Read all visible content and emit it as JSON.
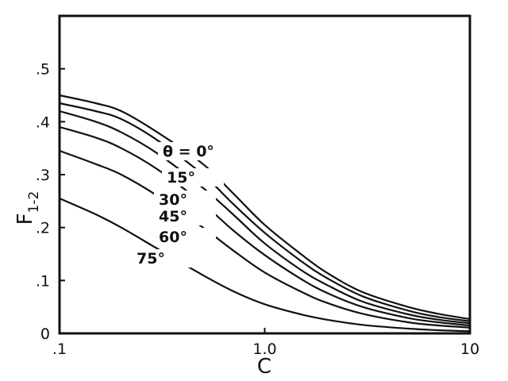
{
  "chart_data": {
    "type": "line",
    "x_scale": "log",
    "xlim": [
      0.1,
      10
    ],
    "ylim": [
      0,
      0.6
    ],
    "xlabel": "C",
    "ylabel": "F1-2",
    "ylabel_main": "F",
    "ylabel_sub": "1-2",
    "grid": false,
    "x_ticks": [
      {
        "value": 0.1,
        "label": ".1"
      },
      {
        "value": 1.0,
        "label": "1.0"
      },
      {
        "value": 10,
        "label": "10"
      }
    ],
    "y_ticks": [
      {
        "value": 0.0,
        "label": "0"
      },
      {
        "value": 0.1,
        "label": ".1"
      },
      {
        "value": 0.2,
        "label": ".2"
      },
      {
        "value": 0.3,
        "label": ".3"
      },
      {
        "value": 0.4,
        "label": ".4"
      },
      {
        "value": 0.5,
        "label": ".5"
      }
    ],
    "series": [
      {
        "label": "θ = 0°",
        "x": [
          0.1,
          0.15,
          0.2,
          0.3,
          0.5,
          0.7,
          1.0,
          1.5,
          2,
          3,
          5,
          7,
          10
        ],
        "y": [
          0.45,
          0.435,
          0.42,
          0.38,
          0.32,
          0.265,
          0.205,
          0.15,
          0.115,
          0.078,
          0.05,
          0.037,
          0.027
        ]
      },
      {
        "label": "15°",
        "x": [
          0.1,
          0.15,
          0.2,
          0.3,
          0.5,
          0.7,
          1.0,
          1.5,
          2,
          3,
          5,
          7,
          10
        ],
        "y": [
          0.435,
          0.42,
          0.405,
          0.365,
          0.3,
          0.245,
          0.19,
          0.137,
          0.105,
          0.07,
          0.043,
          0.031,
          0.023
        ]
      },
      {
        "label": "30°",
        "x": [
          0.1,
          0.15,
          0.2,
          0.3,
          0.5,
          0.7,
          1.0,
          1.5,
          2,
          3,
          5,
          7,
          10
        ],
        "y": [
          0.42,
          0.4,
          0.38,
          0.34,
          0.275,
          0.225,
          0.17,
          0.12,
          0.092,
          0.06,
          0.036,
          0.026,
          0.019
        ]
      },
      {
        "label": "45°",
        "x": [
          0.1,
          0.15,
          0.2,
          0.3,
          0.5,
          0.7,
          1.0,
          1.5,
          2,
          3,
          5,
          7,
          10
        ],
        "y": [
          0.39,
          0.37,
          0.35,
          0.31,
          0.245,
          0.195,
          0.148,
          0.103,
          0.077,
          0.05,
          0.029,
          0.021,
          0.015
        ]
      },
      {
        "label": "60°",
        "x": [
          0.1,
          0.15,
          0.2,
          0.3,
          0.5,
          0.7,
          1.0,
          1.5,
          2,
          3,
          5,
          7,
          10
        ],
        "y": [
          0.345,
          0.32,
          0.3,
          0.26,
          0.2,
          0.157,
          0.115,
          0.079,
          0.058,
          0.037,
          0.021,
          0.015,
          0.011
        ]
      },
      {
        "label": "75°",
        "x": [
          0.1,
          0.15,
          0.2,
          0.3,
          0.5,
          0.7,
          1.0,
          1.5,
          2,
          3,
          5,
          7,
          10
        ],
        "y": [
          0.255,
          0.225,
          0.2,
          0.16,
          0.11,
          0.08,
          0.055,
          0.036,
          0.026,
          0.016,
          0.009,
          0.006,
          0.004
        ]
      }
    ]
  }
}
